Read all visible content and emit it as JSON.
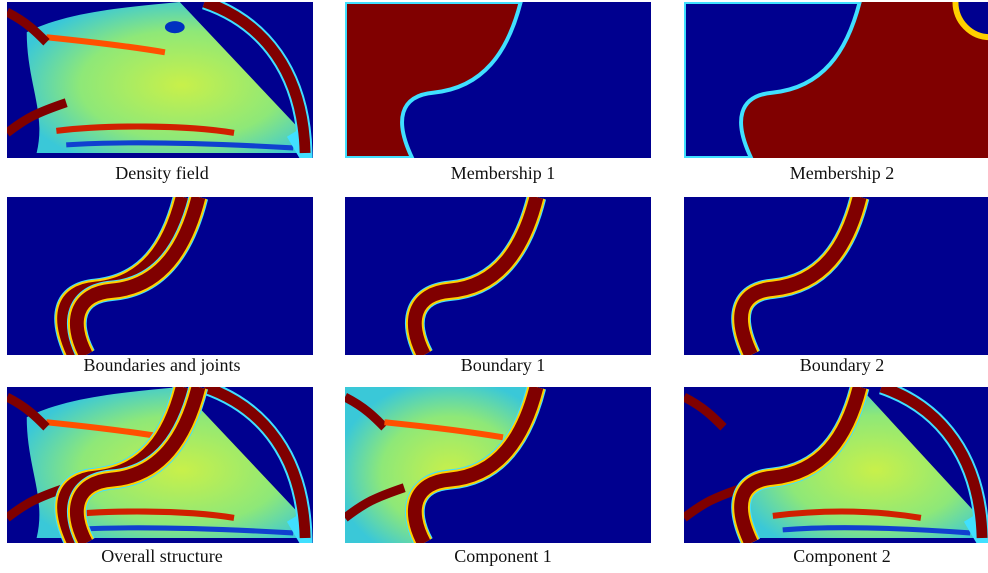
{
  "panels": [
    {
      "caption": "Density field"
    },
    {
      "caption": "Membership 1"
    },
    {
      "caption": "Membership 2"
    },
    {
      "caption": "Boundaries and joints"
    },
    {
      "caption": "Boundary 1"
    },
    {
      "caption": "Boundary 2"
    },
    {
      "caption": "Overall structure"
    },
    {
      "caption": "Component 1"
    },
    {
      "caption": "Component 2"
    }
  ]
}
